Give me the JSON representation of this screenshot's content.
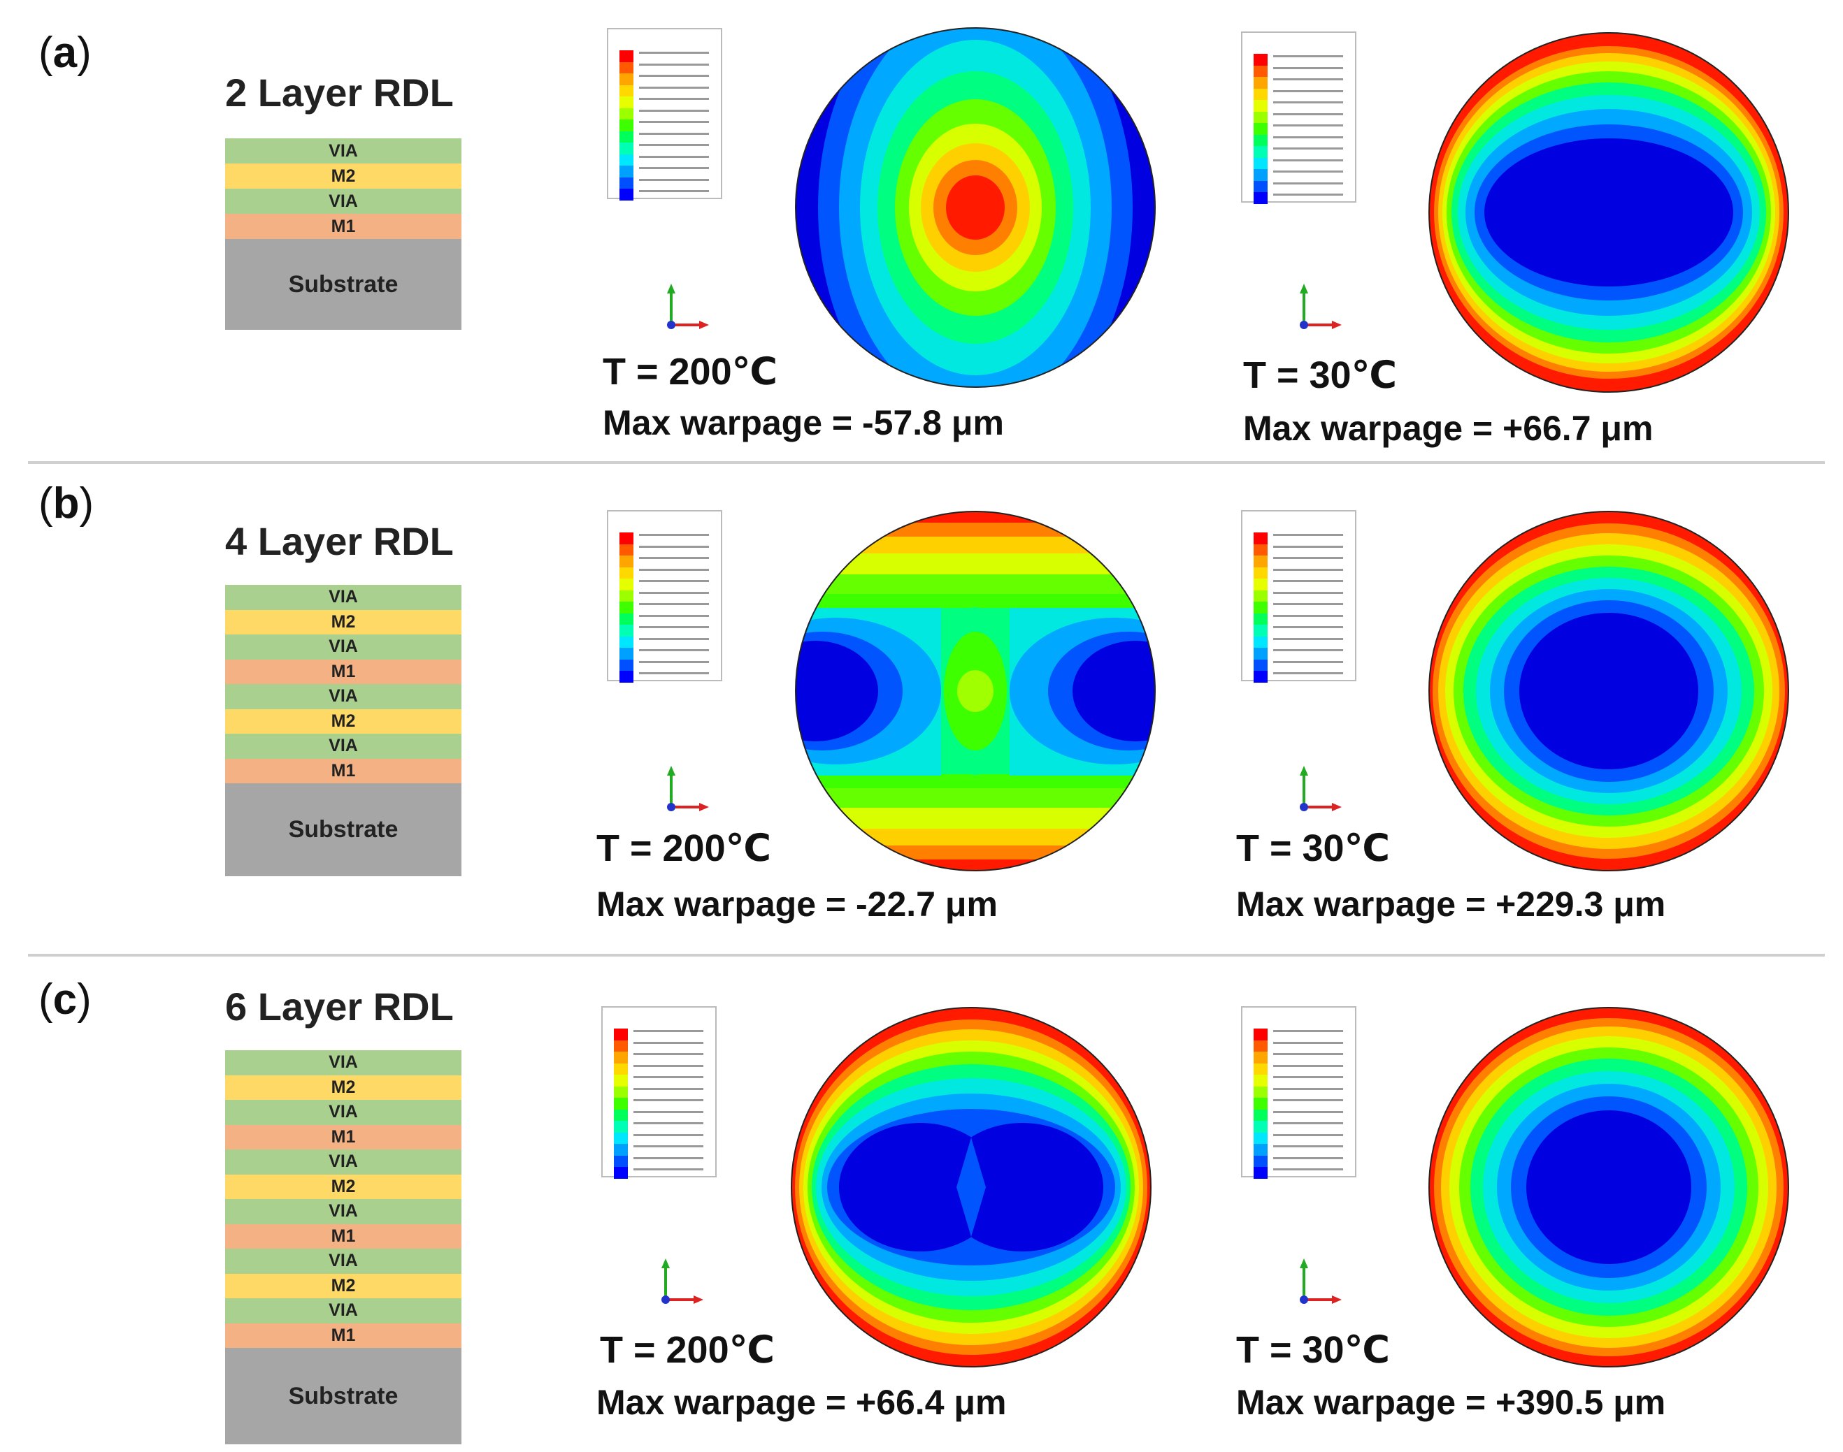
{
  "panels": [
    {
      "label_open": "(",
      "label_letter": "a",
      "label_close": ")",
      "stack_title": "2 Layer RDL",
      "layers": [
        "VIA",
        "M2",
        "VIA",
        "M1"
      ],
      "substrate": "Substrate",
      "left": {
        "temp": "T = 200℃",
        "warpage": "Max warpage = -57.8 μm"
      },
      "right": {
        "temp": "T = 30℃",
        "warpage": "Max warpage = +66.7 μm"
      }
    },
    {
      "label_open": "(",
      "label_letter": "b",
      "label_close": ")",
      "stack_title": "4 Layer RDL",
      "layers": [
        "VIA",
        "M2",
        "VIA",
        "M1",
        "VIA",
        "M2",
        "VIA",
        "M1"
      ],
      "substrate": "Substrate",
      "left": {
        "temp": "T = 200℃",
        "warpage": "Max warpage = -22.7 μm"
      },
      "right": {
        "temp": "T = 30℃",
        "warpage": "Max warpage = +229.3 μm"
      }
    },
    {
      "label_open": "(",
      "label_letter": "c",
      "label_close": ")",
      "stack_title": "6 Layer RDL",
      "layers": [
        "VIA",
        "M2",
        "VIA",
        "M1",
        "VIA",
        "M2",
        "VIA",
        "M1",
        "VIA",
        "M2",
        "VIA",
        "M1"
      ],
      "substrate": "Substrate",
      "left": {
        "temp": "T = 200℃",
        "warpage": "Max warpage = +66.4 μm"
      },
      "right": {
        "temp": "T = 30℃",
        "warpage": "Max warpage = +390.5 μm"
      }
    }
  ],
  "legend_colors": [
    "#ff0000",
    "#ff5a00",
    "#ffa500",
    "#ffd800",
    "#e6ff00",
    "#9cff00",
    "#3dff00",
    "#00ff5a",
    "#00ffb4",
    "#00e6ff",
    "#00a0ff",
    "#0050ff",
    "#0000ff"
  ],
  "colors": {
    "via": "#a9d08e",
    "m2": "#ffd966",
    "m1": "#f4b183",
    "substrate": "#a6a6a6"
  }
}
